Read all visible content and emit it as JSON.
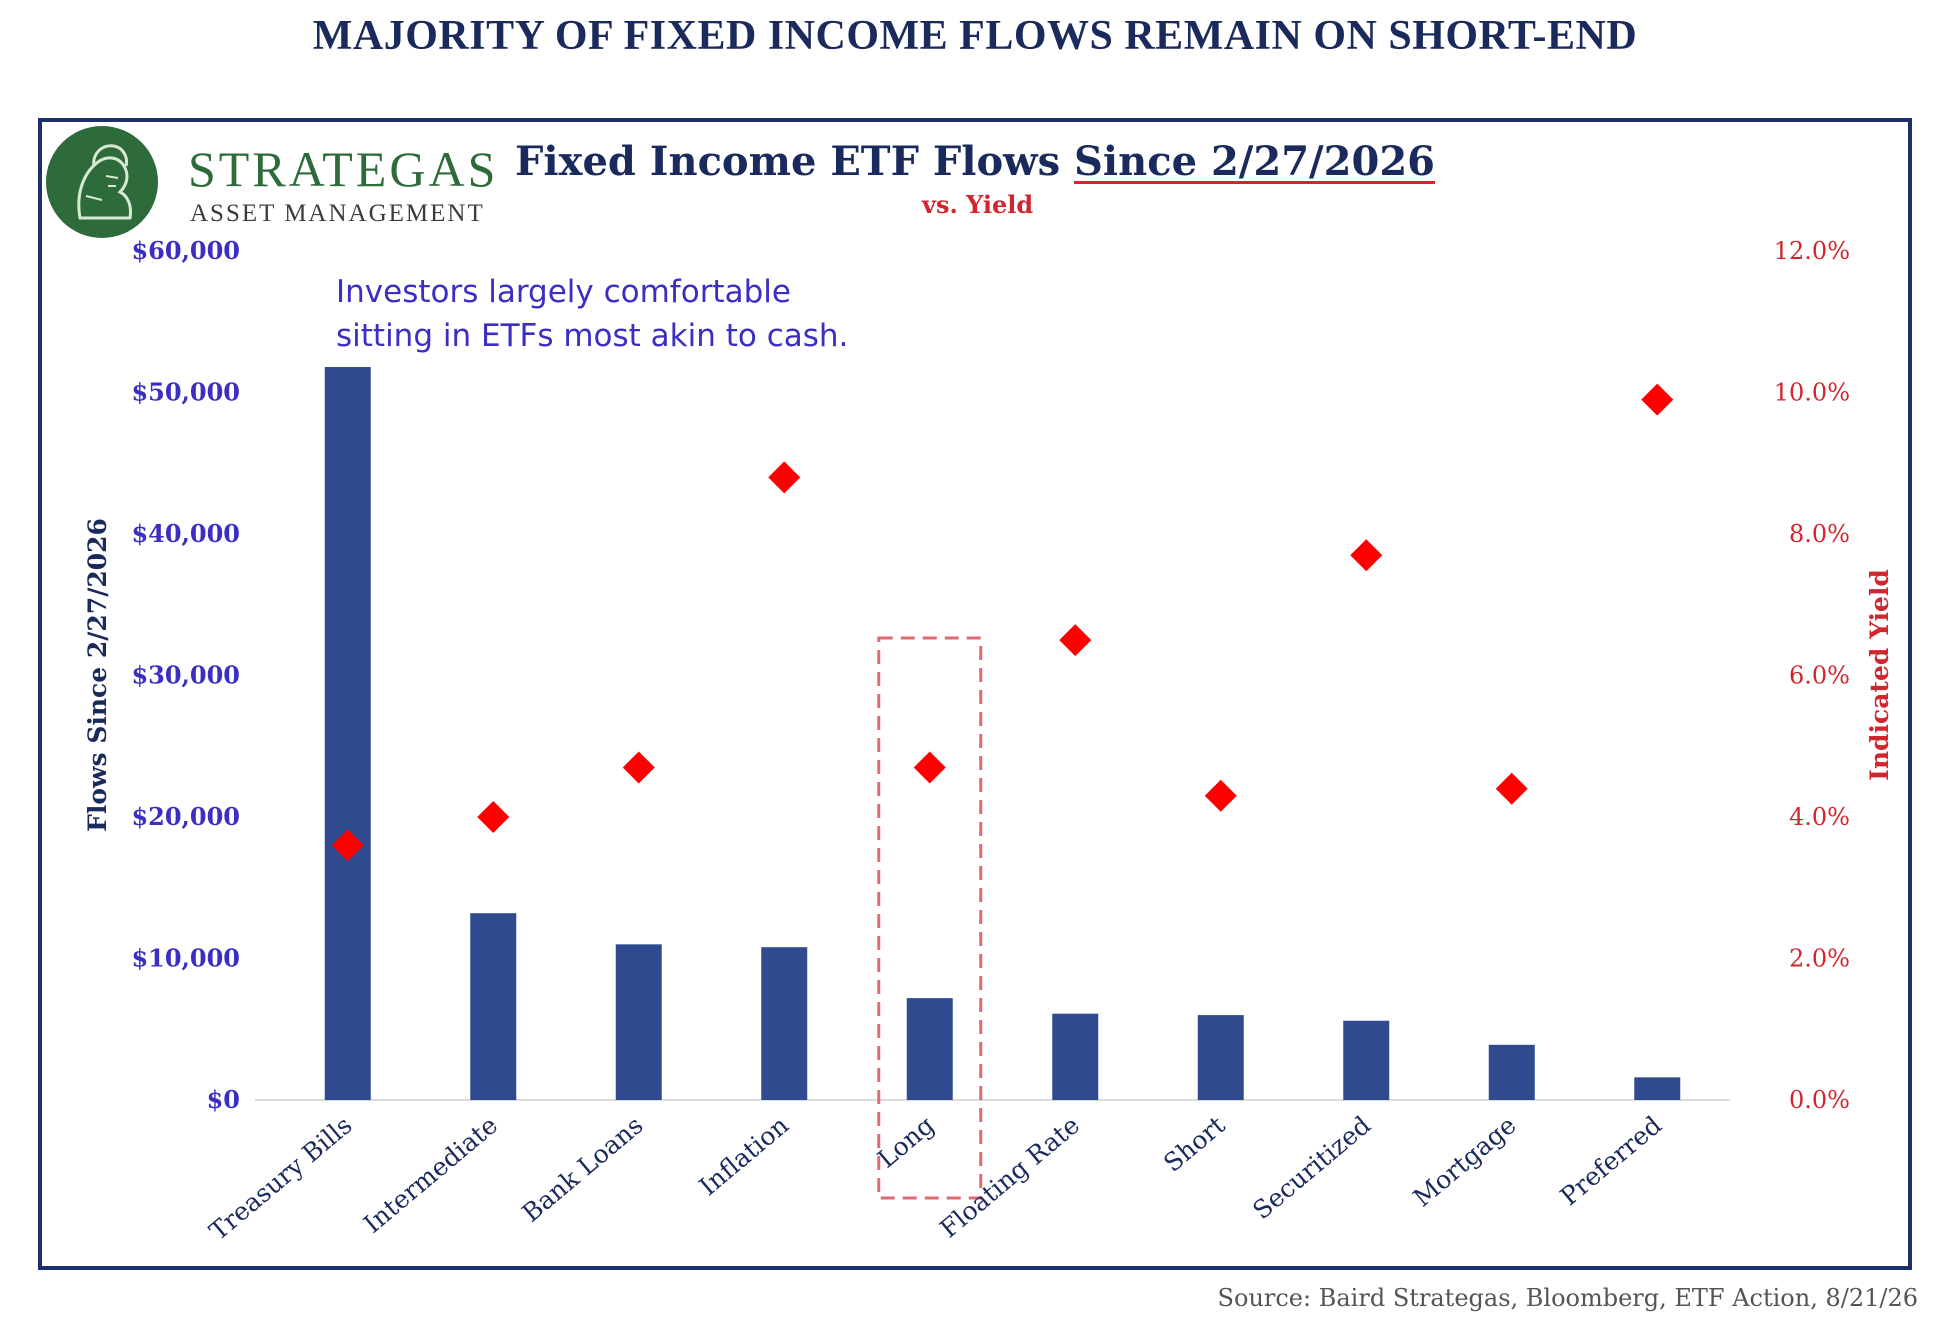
{
  "headline": "MAJORITY OF FIXED INCOME FLOWS REMAIN ON SHORT-END",
  "logo": {
    "name": "STRATEGAS",
    "subtitle": "ASSET MANAGEMENT"
  },
  "annotation": {
    "line1": "Investors largely comfortable",
    "line2": "sitting in ETFs most akin to cash."
  },
  "source": "Source: Baird Strategas, Bloomberg, ETF Action, 8/21/26",
  "colors": {
    "bar": "#2f4a8f",
    "marker": "#ff0000",
    "highlight": "#e06a70"
  },
  "chart_data": {
    "type": "bar",
    "title_part1": "Fixed Income ETF Flows ",
    "title_part2": "Since 2/27/2026",
    "subtitle": "vs. Yield",
    "categories": [
      "Treasury Bills",
      "Intermediate",
      "Bank Loans",
      "Inflation",
      "Long",
      "Floating Rate",
      "Short",
      "Securitized",
      "Mortgage",
      "Preferred"
    ],
    "series": [
      {
        "name": "Flows Since 2/27/2026",
        "axis": "left",
        "kind": "bar",
        "values": [
          51800,
          13200,
          11000,
          10800,
          7200,
          6100,
          6000,
          5600,
          3900,
          1600
        ]
      },
      {
        "name": "Indicated Yield",
        "axis": "right",
        "kind": "scatter",
        "values": [
          3.6,
          4.0,
          4.7,
          8.8,
          4.7,
          6.5,
          4.3,
          7.7,
          4.4,
          9.9
        ]
      }
    ],
    "ylabel": "Flows Since 2/27/2026",
    "y2label": "Indicated Yield",
    "ylim": [
      0,
      60000
    ],
    "y2lim": [
      0,
      12
    ],
    "yticks": [
      "$0",
      "$10,000",
      "$20,000",
      "$30,000",
      "$40,000",
      "$50,000",
      "$60,000"
    ],
    "y2ticks": [
      "0.0%",
      "2.0%",
      "4.0%",
      "6.0%",
      "8.0%",
      "10.0%",
      "12.0%"
    ],
    "highlight_category": "Long",
    "grid": false
  }
}
